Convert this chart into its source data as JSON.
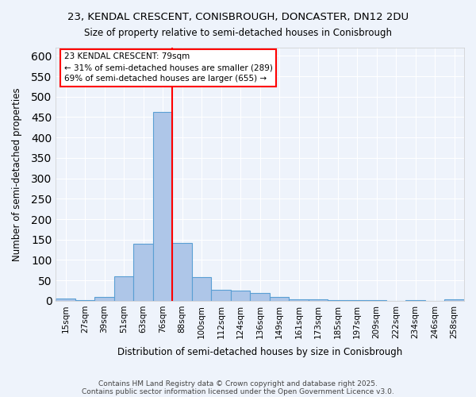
{
  "title1": "23, KENDAL CRESCENT, CONISBROUGH, DONCASTER, DN12 2DU",
  "title2": "Size of property relative to semi-detached houses in Conisbrough",
  "xlabel": "Distribution of semi-detached houses by size in Conisbrough",
  "ylabel": "Number of semi-detached properties",
  "categories": [
    "15sqm",
    "27sqm",
    "39sqm",
    "51sqm",
    "63sqm",
    "76sqm",
    "88sqm",
    "100sqm",
    "112sqm",
    "124sqm",
    "136sqm",
    "149sqm",
    "161sqm",
    "173sqm",
    "185sqm",
    "197sqm",
    "209sqm",
    "222sqm",
    "234sqm",
    "246sqm",
    "258sqm"
  ],
  "values": [
    5,
    2,
    9,
    60,
    140,
    463,
    141,
    58,
    27,
    25,
    19,
    10,
    4,
    3,
    1,
    1,
    1,
    0,
    1,
    0,
    3
  ],
  "bar_color": "#aec6e8",
  "bar_edge_color": "#5a9fd4",
  "red_line_x": 5.5,
  "annotation_text": "23 KENDAL CRESCENT: 79sqm\n← 31% of semi-detached houses are smaller (289)\n69% of semi-detached houses are larger (655) →",
  "ylim": [
    0,
    620
  ],
  "yticks": [
    0,
    50,
    100,
    150,
    200,
    250,
    300,
    350,
    400,
    450,
    500,
    550,
    600
  ],
  "background_color": "#eef3fb",
  "grid_color": "#ffffff",
  "footer1": "Contains HM Land Registry data © Crown copyright and database right 2025.",
  "footer2": "Contains public sector information licensed under the Open Government Licence v3.0."
}
